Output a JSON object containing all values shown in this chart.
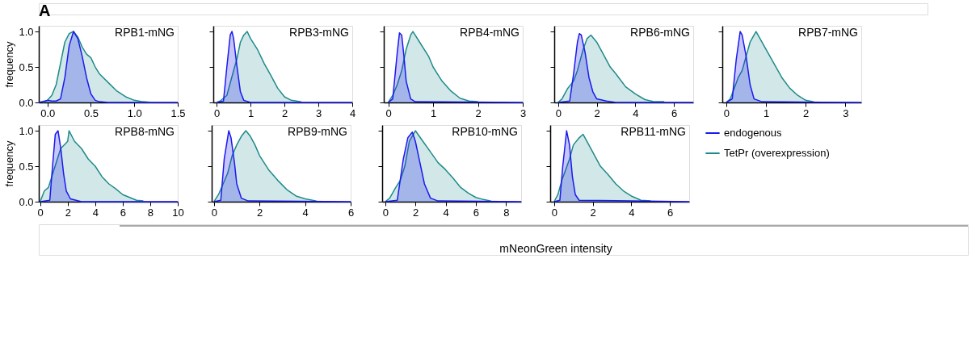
{
  "chart_data": [
    {
      "type": "area",
      "title": "RPB1-mNG",
      "ylabel": "frequency",
      "annotations": [
        "A"
      ],
      "xlim": [
        -0.1,
        1.5
      ],
      "xticks": [
        {
          "value": 0,
          "label": "0.0"
        },
        0.5,
        {
          "value": 1,
          "label": "1.0"
        },
        1.5
      ],
      "ylim": [
        0,
        1.08
      ],
      "yticks": [
        {
          "value": 0,
          "label": "0.0"
        },
        0.5,
        {
          "value": 1,
          "label": "1.0"
        }
      ],
      "grid": false,
      "legend": false,
      "series": [
        {
          "color": "#1a1aee",
          "x": [
            -0.1,
            0,
            0.05,
            0.1,
            0.15,
            0.2,
            0.25,
            0.3,
            0.35,
            0.4,
            0.45,
            0.5,
            0.55,
            0.6,
            0.7,
            1.5
          ],
          "values": [
            0,
            0.03,
            0.02,
            0.02,
            0.05,
            0.35,
            0.8,
            1.0,
            0.9,
            0.65,
            0.35,
            0.12,
            0.03,
            0.01,
            0,
            0
          ]
        },
        {
          "color": "#1f8a8a",
          "x": [
            -0.05,
            0,
            0.05,
            0.1,
            0.15,
            0.2,
            0.25,
            0.3,
            0.35,
            0.4,
            0.45,
            0.5,
            0.55,
            0.6,
            0.7,
            0.8,
            0.9,
            1.0,
            1.1,
            1.2
          ],
          "values": [
            0,
            0.03,
            0.1,
            0.25,
            0.55,
            0.85,
            0.97,
            1.0,
            0.92,
            0.78,
            0.68,
            0.63,
            0.5,
            0.4,
            0.28,
            0.16,
            0.08,
            0.03,
            0.01,
            0
          ]
        }
      ]
    },
    {
      "type": "area",
      "title": "RPB3-mNG",
      "xlim": [
        -0.1,
        4
      ],
      "xticks": [
        0,
        1,
        2,
        3,
        4
      ],
      "ylim": [
        0,
        1.08
      ],
      "yticks": [
        {
          "value": 0,
          "label": null
        },
        {
          "value": 0.5,
          "label": null
        },
        {
          "value": 1,
          "label": null
        }
      ],
      "tick_labels": "x",
      "grid": false,
      "legend": false,
      "series": [
        {
          "color": "#1a1aee",
          "x": [
            0,
            0.2,
            0.3,
            0.4,
            0.45,
            0.5,
            0.6,
            0.7,
            0.8,
            1.0,
            4
          ],
          "values": [
            0,
            0.02,
            0.5,
            0.95,
            1.0,
            0.9,
            0.5,
            0.15,
            0.03,
            0,
            0
          ]
        },
        {
          "color": "#1f8a8a",
          "x": [
            0,
            0.1,
            0.3,
            0.5,
            0.6,
            0.7,
            0.8,
            0.9,
            1.0,
            1.2,
            1.4,
            1.6,
            1.8,
            2.0,
            2.2,
            2.5
          ],
          "values": [
            0,
            0.02,
            0.1,
            0.45,
            0.62,
            0.85,
            0.95,
            1.0,
            0.9,
            0.75,
            0.55,
            0.38,
            0.2,
            0.08,
            0.03,
            0.01
          ]
        }
      ]
    },
    {
      "type": "area",
      "title": "RPB4-mNG",
      "xlim": [
        -0.1,
        3
      ],
      "xticks": [
        0,
        1,
        2,
        3
      ],
      "ylim": [
        0,
        1.08
      ],
      "yticks": [
        {
          "value": 0,
          "label": null
        },
        {
          "value": 0.5,
          "label": null
        },
        {
          "value": 1,
          "label": null
        }
      ],
      "tick_labels": "x",
      "grid": false,
      "legend": false,
      "series": [
        {
          "color": "#1a1aee",
          "x": [
            0,
            0.1,
            0.2,
            0.25,
            0.3,
            0.35,
            0.4,
            0.5,
            0.6,
            3
          ],
          "values": [
            0,
            0.05,
            0.7,
            0.98,
            0.95,
            0.65,
            0.3,
            0.05,
            0.01,
            0
          ]
        },
        {
          "color": "#1f8a8a",
          "x": [
            0,
            0.1,
            0.2,
            0.3,
            0.4,
            0.5,
            0.55,
            0.7,
            0.9,
            1.0,
            1.1,
            1.2,
            1.4,
            1.6,
            1.8,
            2.0
          ],
          "values": [
            0,
            0.1,
            0.25,
            0.45,
            0.75,
            0.95,
            1.0,
            0.85,
            0.65,
            0.5,
            0.4,
            0.3,
            0.16,
            0.06,
            0.02,
            0.01
          ]
        }
      ]
    },
    {
      "type": "area",
      "title": "RPB6-mNG",
      "xlim": [
        -0.2,
        7
      ],
      "xticks": [
        0,
        2,
        4,
        6
      ],
      "ylim": [
        0,
        1.08
      ],
      "yticks": [
        {
          "value": 0,
          "label": null
        },
        {
          "value": 0.5,
          "label": null
        },
        {
          "value": 1,
          "label": null
        }
      ],
      "tick_labels": "x",
      "grid": false,
      "legend": false,
      "series": [
        {
          "color": "#1a1aee",
          "x": [
            0,
            0.6,
            0.8,
            1.0,
            1.1,
            1.2,
            1.4,
            1.6,
            1.8,
            2.0,
            2.5,
            3,
            7
          ],
          "values": [
            0,
            0.02,
            0.4,
            0.85,
            0.97,
            0.95,
            0.7,
            0.35,
            0.15,
            0.05,
            0.02,
            0,
            0
          ]
        },
        {
          "color": "#1f8a8a",
          "x": [
            0,
            0.2,
            0.5,
            0.8,
            1.0,
            1.3,
            1.5,
            1.7,
            2.0,
            2.3,
            2.7,
            3.0,
            3.5,
            4.0,
            4.5,
            5.0,
            5.5
          ],
          "values": [
            0,
            0.05,
            0.2,
            0.3,
            0.45,
            0.75,
            0.9,
            0.95,
            0.85,
            0.7,
            0.5,
            0.4,
            0.22,
            0.12,
            0.04,
            0.01,
            0.01
          ]
        }
      ]
    },
    {
      "type": "area",
      "title": "RPB7-mNG",
      "xlim": [
        -0.1,
        3.4
      ],
      "xticks": [
        0,
        1,
        2,
        3
      ],
      "ylim": [
        0,
        1.08
      ],
      "yticks": [
        {
          "value": 0,
          "label": null
        },
        {
          "value": 0.5,
          "label": null
        },
        {
          "value": 1,
          "label": null
        }
      ],
      "tick_labels": "x",
      "grid": false,
      "legend": false,
      "series": [
        {
          "color": "#1a1aee",
          "x": [
            0,
            0.15,
            0.25,
            0.35,
            0.4,
            0.5,
            0.6,
            0.7,
            0.9,
            3.4
          ],
          "values": [
            0,
            0.05,
            0.6,
            1.0,
            0.95,
            0.65,
            0.25,
            0.05,
            0.01,
            0
          ]
        },
        {
          "color": "#1f8a8a",
          "x": [
            0,
            0.1,
            0.2,
            0.3,
            0.4,
            0.5,
            0.6,
            0.7,
            0.75,
            0.85,
            1.0,
            1.2,
            1.4,
            1.6,
            1.8,
            2.0,
            2.2
          ],
          "values": [
            0,
            0.05,
            0.2,
            0.35,
            0.45,
            0.65,
            0.85,
            0.95,
            1.0,
            0.9,
            0.75,
            0.55,
            0.35,
            0.2,
            0.1,
            0.03,
            0.01
          ]
        }
      ]
    },
    {
      "type": "area",
      "title": "RPB8-mNG",
      "ylabel": "frequency",
      "xlim": [
        -0.1,
        10
      ],
      "xticks": [
        0,
        2,
        4,
        6,
        8,
        10
      ],
      "ylim": [
        0,
        1.08
      ],
      "yticks": [
        {
          "value": 0,
          "label": "0.0"
        },
        0.5,
        {
          "value": 1,
          "label": "1.0"
        }
      ],
      "grid": false,
      "legend": false,
      "series": [
        {
          "color": "#1a1aee",
          "x": [
            0,
            0.7,
            0.9,
            1.1,
            1.3,
            1.5,
            1.7,
            1.9,
            2.2,
            3,
            10
          ],
          "values": [
            0,
            0.02,
            0.5,
            0.95,
            1.0,
            0.75,
            0.4,
            0.15,
            0.04,
            0,
            0
          ]
        },
        {
          "color": "#1f8a8a",
          "x": [
            0,
            0.3,
            0.6,
            1.0,
            1.5,
            2.0,
            2.1,
            2.5,
            3.0,
            3.5,
            4.0,
            4.5,
            5.0,
            5.5,
            6.0,
            6.5,
            7.0,
            7.5
          ],
          "values": [
            0,
            0.15,
            0.2,
            0.45,
            0.75,
            0.85,
            1.0,
            0.85,
            0.75,
            0.6,
            0.5,
            0.35,
            0.25,
            0.18,
            0.1,
            0.06,
            0.02,
            0.01
          ]
        }
      ]
    },
    {
      "type": "area",
      "title": "RPB9-mNG",
      "xlim": [
        -0.1,
        6
      ],
      "xticks": [
        0,
        2,
        4,
        6
      ],
      "ylim": [
        0,
        1.08
      ],
      "yticks": [
        {
          "value": 0,
          "label": null
        },
        {
          "value": 0.5,
          "label": null
        },
        {
          "value": 1,
          "label": null
        }
      ],
      "tick_labels": "x",
      "grid": false,
      "legend": false,
      "series": [
        {
          "color": "#1a1aee",
          "x": [
            0,
            0.3,
            0.45,
            0.65,
            0.75,
            0.9,
            1.0,
            1.2,
            1.5,
            6
          ],
          "values": [
            0,
            0.02,
            0.6,
            1.0,
            0.9,
            0.55,
            0.25,
            0.05,
            0.01,
            0
          ]
        },
        {
          "color": "#1f8a8a",
          "x": [
            0,
            0.2,
            0.4,
            0.6,
            0.8,
            1.0,
            1.2,
            1.4,
            1.6,
            1.8,
            2.0,
            2.4,
            2.8,
            3.2,
            3.6,
            4.0,
            4.5
          ],
          "values": [
            0,
            0.1,
            0.25,
            0.4,
            0.65,
            0.8,
            0.92,
            1.0,
            0.92,
            0.8,
            0.65,
            0.45,
            0.3,
            0.17,
            0.08,
            0.04,
            0.01
          ]
        }
      ]
    },
    {
      "type": "area",
      "title": "RPB10-mNG",
      "xlim": [
        -0.2,
        9
      ],
      "xticks": [
        0,
        2,
        4,
        6,
        8
      ],
      "ylim": [
        0,
        1.08
      ],
      "yticks": [
        {
          "value": 0,
          "label": null
        },
        {
          "value": 0.5,
          "label": null
        },
        {
          "value": 1,
          "label": null
        }
      ],
      "tick_labels": "x",
      "grid": false,
      "legend": false,
      "series": [
        {
          "color": "#1a1aee",
          "x": [
            0,
            0.8,
            1.2,
            1.5,
            1.8,
            2.0,
            2.3,
            2.6,
            3.0,
            3.5,
            9
          ],
          "values": [
            0,
            0.02,
            0.6,
            0.9,
            0.98,
            0.85,
            0.55,
            0.25,
            0.05,
            0.01,
            0
          ]
        },
        {
          "color": "#1f8a8a",
          "x": [
            0,
            0.3,
            0.7,
            1.0,
            1.3,
            1.6,
            2.0,
            2.5,
            3.0,
            3.5,
            4.0,
            4.5,
            5.0,
            5.5,
            6.0,
            6.5,
            7.0
          ],
          "values": [
            0,
            0.05,
            0.2,
            0.3,
            0.5,
            0.85,
            1.0,
            0.85,
            0.7,
            0.55,
            0.45,
            0.33,
            0.2,
            0.12,
            0.06,
            0.03,
            0.01
          ]
        }
      ]
    },
    {
      "type": "area",
      "title": "RPB11-mNG",
      "xlim": [
        -0.2,
        7
      ],
      "xticks": [
        0,
        2,
        4,
        6
      ],
      "ylim": [
        0,
        1.08
      ],
      "yticks": [
        {
          "value": 0,
          "label": null
        },
        {
          "value": 0.5,
          "label": null
        },
        {
          "value": 1,
          "label": null
        }
      ],
      "tick_labels": "x",
      "grid": false,
      "legend": "right",
      "series": [
        {
          "name": "endogenous",
          "color": "#1a1aee",
          "x": [
            0,
            0.3,
            0.45,
            0.65,
            0.8,
            0.95,
            1.1,
            1.3,
            7
          ],
          "values": [
            0,
            0.02,
            0.5,
            1.0,
            0.8,
            0.35,
            0.1,
            0.02,
            0
          ]
        },
        {
          "name": "TetPr (overexpression)",
          "color": "#1f8a8a",
          "x": [
            0,
            0.2,
            0.4,
            0.6,
            0.8,
            1.0,
            1.3,
            1.5,
            1.7,
            2.0,
            2.4,
            2.8,
            3.2,
            3.6,
            4.0,
            4.5,
            5.0
          ],
          "values": [
            0,
            0.1,
            0.3,
            0.45,
            0.6,
            0.8,
            0.9,
            0.95,
            0.85,
            0.7,
            0.5,
            0.38,
            0.25,
            0.15,
            0.08,
            0.02,
            0.01
          ]
        }
      ]
    },
    {
      "type": "other",
      "annotations": [
        "mNeonGreen intensity"
      ]
    }
  ]
}
